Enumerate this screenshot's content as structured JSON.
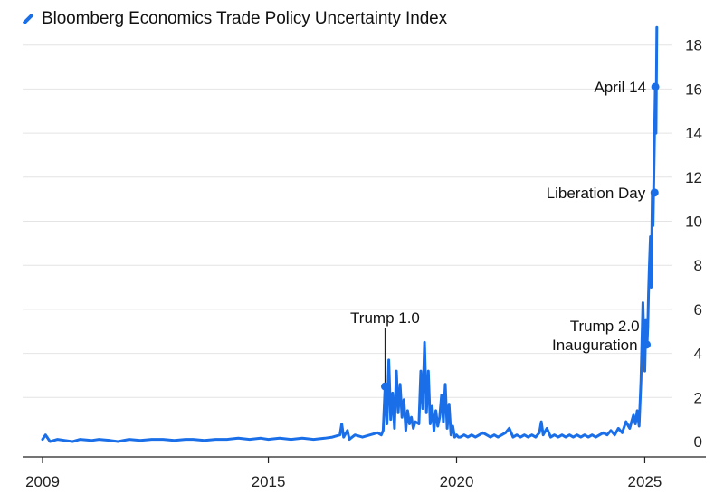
{
  "chart_data": {
    "type": "line",
    "title": "Bloomberg Economics Trade Policy Uncertainty Index",
    "legend": {
      "label": "Bloomberg Economics Trade Policy Uncertainty Index",
      "color": "#1a6fe8",
      "placement": "top-left"
    },
    "xlabel": "",
    "ylabel": "",
    "xlim": [
      2009,
      2026.6
    ],
    "ylim": [
      -0.6,
      18.8
    ],
    "y_axis_side": "right",
    "xticks": [
      {
        "value": 2009,
        "label": "2009"
      },
      {
        "value": 2015,
        "label": "2015"
      },
      {
        "value": 2020,
        "label": "2020"
      },
      {
        "value": 2025,
        "label": "2025"
      }
    ],
    "yticks": [
      {
        "value": 0,
        "label": "0"
      },
      {
        "value": 2,
        "label": "2"
      },
      {
        "value": 4,
        "label": "4"
      },
      {
        "value": 6,
        "label": "6"
      },
      {
        "value": 8,
        "label": "8"
      },
      {
        "value": 10,
        "label": "10"
      },
      {
        "value": 12,
        "label": "12"
      },
      {
        "value": 14,
        "label": "14"
      },
      {
        "value": 16,
        "label": "16"
      },
      {
        "value": 18,
        "label": "18"
      }
    ],
    "grid": true,
    "series": [
      {
        "name": "Bloomberg Economics Trade Policy Uncertainty Index",
        "color": "#1a6fe8",
        "x": [
          2009.0,
          2009.08,
          2009.2,
          2009.4,
          2009.6,
          2009.8,
          2010.0,
          2010.3,
          2010.5,
          2010.8,
          2011.0,
          2011.3,
          2011.6,
          2011.9,
          2012.2,
          2012.5,
          2012.8,
          2013.0,
          2013.3,
          2013.6,
          2013.9,
          2014.2,
          2014.5,
          2014.8,
          2015.0,
          2015.3,
          2015.6,
          2015.9,
          2016.2,
          2016.5,
          2016.7,
          2016.9,
          2016.95,
          2017.0,
          2017.1,
          2017.15,
          2017.3,
          2017.5,
          2017.7,
          2017.9,
          2018.0,
          2018.05,
          2018.1,
          2018.15,
          2018.2,
          2018.25,
          2018.3,
          2018.35,
          2018.4,
          2018.45,
          2018.5,
          2018.55,
          2018.6,
          2018.65,
          2018.7,
          2018.75,
          2018.8,
          2018.85,
          2018.9,
          2019.0,
          2019.05,
          2019.1,
          2019.15,
          2019.2,
          2019.25,
          2019.3,
          2019.35,
          2019.4,
          2019.45,
          2019.5,
          2019.55,
          2019.6,
          2019.65,
          2019.7,
          2019.75,
          2019.8,
          2019.85,
          2019.9,
          2019.95,
          2020.0,
          2020.05,
          2020.1,
          2020.2,
          2020.3,
          2020.4,
          2020.5,
          2020.6,
          2020.7,
          2020.8,
          2020.9,
          2021.0,
          2021.1,
          2021.2,
          2021.3,
          2021.4,
          2021.5,
          2021.6,
          2021.7,
          2021.8,
          2021.9,
          2022.0,
          2022.1,
          2022.2,
          2022.25,
          2022.3,
          2022.4,
          2022.5,
          2022.6,
          2022.7,
          2022.8,
          2022.9,
          2023.0,
          2023.1,
          2023.2,
          2023.3,
          2023.4,
          2023.5,
          2023.6,
          2023.7,
          2023.8,
          2023.9,
          2024.0,
          2024.1,
          2024.2,
          2024.3,
          2024.4,
          2024.5,
          2024.6,
          2024.7,
          2024.75,
          2024.8,
          2024.85,
          2024.9,
          2024.95,
          2025.0,
          2025.03,
          2025.06,
          2025.08,
          2025.1,
          2025.12,
          2025.15,
          2025.17,
          2025.2,
          2025.22,
          2025.25,
          2025.28,
          2025.3,
          2025.32
        ],
        "values": [
          0.1,
          0.3,
          0.0,
          0.1,
          0.05,
          0.0,
          0.1,
          0.05,
          0.1,
          0.05,
          0.0,
          0.1,
          0.05,
          0.1,
          0.1,
          0.05,
          0.1,
          0.1,
          0.05,
          0.1,
          0.1,
          0.15,
          0.1,
          0.15,
          0.1,
          0.15,
          0.1,
          0.15,
          0.1,
          0.15,
          0.2,
          0.3,
          0.8,
          0.2,
          0.5,
          0.1,
          0.3,
          0.2,
          0.3,
          0.4,
          0.3,
          0.5,
          2.5,
          0.8,
          3.7,
          1.0,
          2.2,
          0.6,
          3.2,
          1.3,
          2.6,
          1.1,
          1.9,
          0.5,
          1.4,
          0.8,
          1.1,
          0.6,
          0.9,
          0.8,
          3.2,
          1.5,
          4.5,
          1.3,
          3.2,
          0.8,
          1.6,
          0.5,
          1.4,
          0.7,
          1.1,
          2.1,
          0.9,
          2.6,
          0.6,
          1.7,
          0.3,
          0.7,
          0.2,
          0.3,
          0.2,
          0.2,
          0.3,
          0.2,
          0.3,
          0.2,
          0.3,
          0.4,
          0.3,
          0.2,
          0.3,
          0.2,
          0.3,
          0.4,
          0.6,
          0.2,
          0.3,
          0.2,
          0.3,
          0.2,
          0.3,
          0.2,
          0.4,
          0.9,
          0.3,
          0.6,
          0.2,
          0.3,
          0.2,
          0.3,
          0.2,
          0.3,
          0.2,
          0.3,
          0.2,
          0.3,
          0.2,
          0.3,
          0.2,
          0.3,
          0.4,
          0.3,
          0.5,
          0.3,
          0.6,
          0.4,
          0.9,
          0.6,
          1.2,
          0.8,
          1.4,
          0.7,
          2.8,
          6.3,
          3.2,
          5.5,
          4.4,
          5.2,
          6.7,
          7.8,
          9.3,
          7.0,
          11.3,
          9.8,
          13.0,
          16.1,
          14.0,
          18.8
        ]
      }
    ],
    "annotations": [
      {
        "label": "Trump 1.0",
        "x": 2018.1,
        "y": 2.5,
        "style": "leader-above"
      },
      {
        "label": "Trump 2.0",
        "label_line2": "Inauguration",
        "x": 2025.05,
        "y": 4.4,
        "style": "left"
      },
      {
        "label": "Liberation Day",
        "x": 2025.26,
        "y": 11.3,
        "style": "left"
      },
      {
        "label": "April 14",
        "x": 2025.28,
        "y": 16.1,
        "style": "left"
      }
    ]
  }
}
